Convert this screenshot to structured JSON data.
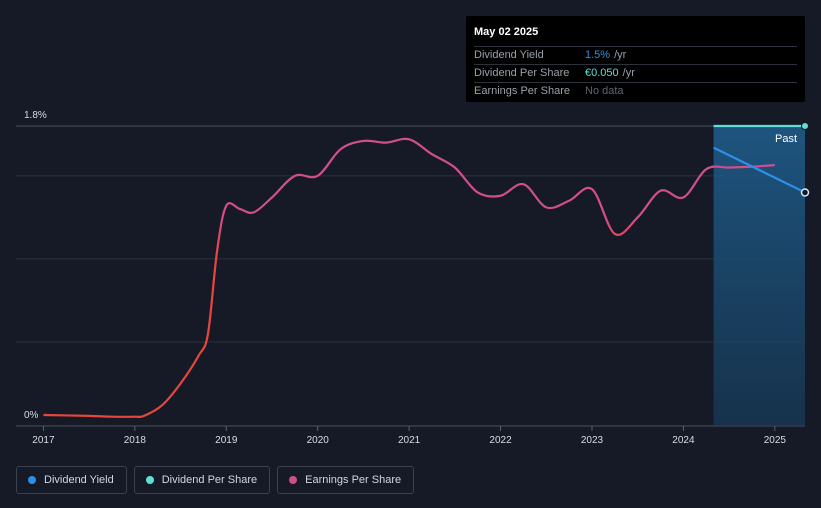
{
  "chart_data": {
    "type": "line",
    "y_top_label": "1.8%",
    "y_bottom_label": "0%",
    "ylim": [
      0,
      1.8
    ],
    "xlim": [
      2016.7,
      2025.33
    ],
    "x_ticks": [
      "2017",
      "2018",
      "2019",
      "2020",
      "2021",
      "2022",
      "2023",
      "2024",
      "2025"
    ],
    "past_label": "Past",
    "forecast_start": 2024.33,
    "grid": true,
    "series": [
      {
        "name": "Dividend Yield",
        "color": "#2d8fe6",
        "points": [
          [
            2024.33,
            1.67
          ],
          [
            2025.33,
            1.4
          ]
        ]
      },
      {
        "name": "Dividend Per Share",
        "color": "#5fe0d6",
        "points": [
          [
            2024.33,
            1.8
          ],
          [
            2025.33,
            1.8
          ]
        ]
      },
      {
        "name": "Earnings Per Share",
        "color_low": "#e8453c",
        "color_high": "#d04e8e",
        "points": [
          [
            2017.0,
            0.06
          ],
          [
            2017.5,
            0.055
          ],
          [
            2017.75,
            0.05
          ],
          [
            2018.0,
            0.05
          ],
          [
            2018.1,
            0.055
          ],
          [
            2018.3,
            0.12
          ],
          [
            2018.5,
            0.25
          ],
          [
            2018.7,
            0.42
          ],
          [
            2018.8,
            0.55
          ],
          [
            2018.9,
            1.05
          ],
          [
            2019.0,
            1.32
          ],
          [
            2019.15,
            1.3
          ],
          [
            2019.3,
            1.28
          ],
          [
            2019.5,
            1.37
          ],
          [
            2019.75,
            1.5
          ],
          [
            2020.0,
            1.5
          ],
          [
            2020.25,
            1.66
          ],
          [
            2020.5,
            1.71
          ],
          [
            2020.75,
            1.7
          ],
          [
            2021.0,
            1.72
          ],
          [
            2021.25,
            1.63
          ],
          [
            2021.5,
            1.55
          ],
          [
            2021.75,
            1.4
          ],
          [
            2022.0,
            1.38
          ],
          [
            2022.25,
            1.45
          ],
          [
            2022.5,
            1.31
          ],
          [
            2022.75,
            1.35
          ],
          [
            2023.0,
            1.42
          ],
          [
            2023.25,
            1.15
          ],
          [
            2023.5,
            1.25
          ],
          [
            2023.75,
            1.41
          ],
          [
            2024.0,
            1.37
          ],
          [
            2024.25,
            1.54
          ],
          [
            2024.5,
            1.55
          ],
          [
            2024.75,
            1.555
          ],
          [
            2025.0,
            1.565
          ]
        ]
      }
    ]
  },
  "tooltip": {
    "date": "May 02 2025",
    "rows": [
      {
        "label": "Dividend Yield",
        "value": "1.5%",
        "unit": "/yr",
        "color": "#2d8fe6"
      },
      {
        "label": "Dividend Per Share",
        "value": "€0.050",
        "unit": "/yr",
        "color": "#5fe0d6"
      },
      {
        "label": "Earnings Per Share",
        "value": "No data",
        "unit": "",
        "color": "#5e6470"
      }
    ]
  },
  "legend": [
    {
      "label": "Dividend Yield",
      "color": "#2d8fe6"
    },
    {
      "label": "Dividend Per Share",
      "color": "#5fe0d6"
    },
    {
      "label": "Earnings Per Share",
      "color": "#d04e8e"
    }
  ]
}
